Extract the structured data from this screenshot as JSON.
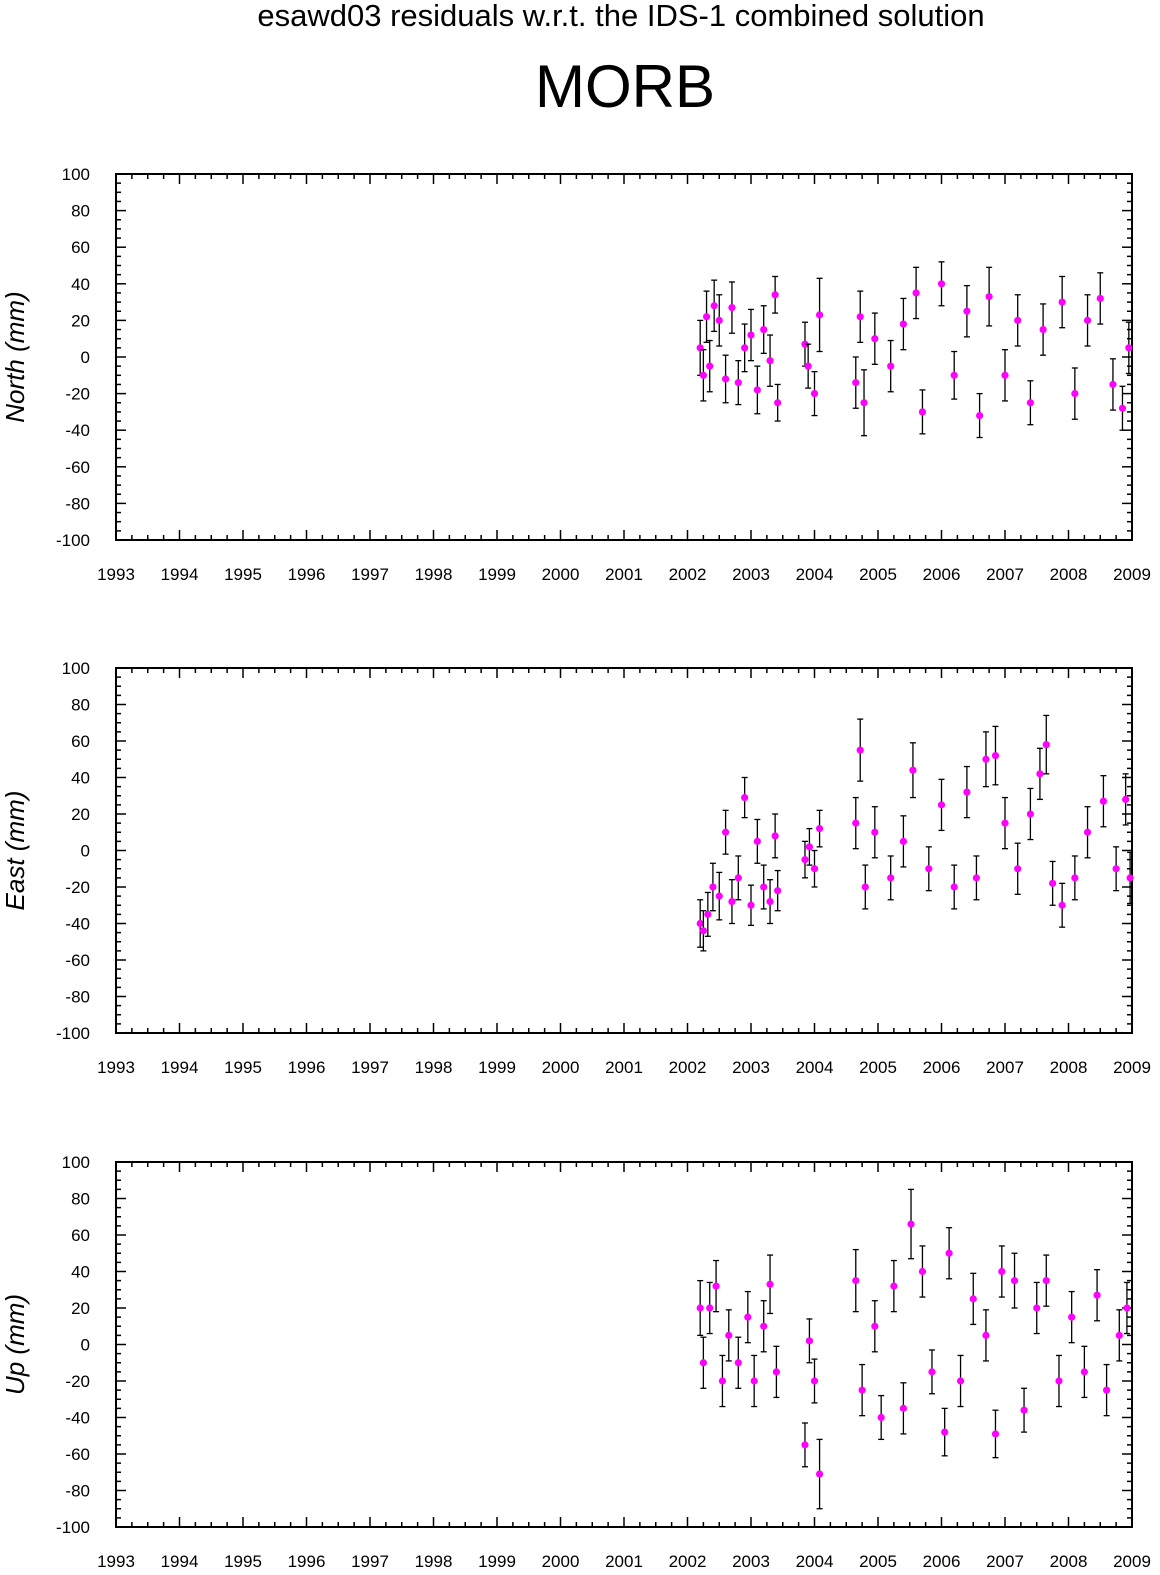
{
  "title": "esawd03 residuals w.r.t. the IDS-1 combined solution",
  "station": "MORB",
  "colors": {
    "points": "#ff00ff",
    "errorbars": "#000000",
    "axes": "#000000"
  },
  "chart_data": [
    {
      "type": "scatter",
      "ylabel": "North (mm)",
      "xlim": [
        1993,
        2009
      ],
      "ylim": [
        -100,
        100
      ],
      "x_ticks": [
        "1993",
        "1994",
        "1995",
        "1996",
        "1997",
        "1998",
        "1999",
        "2000",
        "2001",
        "2002",
        "2003",
        "2004",
        "2005",
        "2006",
        "2007",
        "2008",
        "2009"
      ],
      "y_ticks": [
        "100",
        "80",
        "60",
        "40",
        "20",
        "0",
        "-20",
        "-40",
        "-60",
        "-80",
        "-100"
      ],
      "series": [
        {
          "marker": "circle",
          "points": [
            {
              "x": 2002.2,
              "y": 5,
              "err": 15
            },
            {
              "x": 2002.25,
              "y": -10,
              "err": 14
            },
            {
              "x": 2002.3,
              "y": 22,
              "err": 14
            },
            {
              "x": 2002.35,
              "y": -5,
              "err": 14
            },
            {
              "x": 2002.42,
              "y": 28,
              "err": 14
            },
            {
              "x": 2002.5,
              "y": 20,
              "err": 14
            },
            {
              "x": 2002.6,
              "y": -12,
              "err": 13
            },
            {
              "x": 2002.7,
              "y": 27,
              "err": 14
            },
            {
              "x": 2002.8,
              "y": -14,
              "err": 12
            },
            {
              "x": 2002.9,
              "y": 5,
              "err": 13
            },
            {
              "x": 2003.0,
              "y": 12,
              "err": 14
            },
            {
              "x": 2003.1,
              "y": -18,
              "err": 13
            },
            {
              "x": 2003.2,
              "y": 15,
              "err": 13
            },
            {
              "x": 2003.3,
              "y": -2,
              "err": 14
            },
            {
              "x": 2003.38,
              "y": 34,
              "err": 10
            },
            {
              "x": 2003.42,
              "y": -25,
              "err": 10
            },
            {
              "x": 2003.85,
              "y": 7,
              "err": 12
            },
            {
              "x": 2003.9,
              "y": -5,
              "err": 12
            },
            {
              "x": 2004.0,
              "y": -20,
              "err": 12
            },
            {
              "x": 2004.08,
              "y": 23,
              "err": 20
            },
            {
              "x": 2004.65,
              "y": -14,
              "err": 14
            },
            {
              "x": 2004.72,
              "y": 22,
              "err": 14
            },
            {
              "x": 2004.78,
              "y": -25,
              "err": 18
            },
            {
              "x": 2004.95,
              "y": 10,
              "err": 14
            },
            {
              "x": 2005.2,
              "y": -5,
              "err": 14
            },
            {
              "x": 2005.4,
              "y": 18,
              "err": 14
            },
            {
              "x": 2005.6,
              "y": 35,
              "err": 14
            },
            {
              "x": 2005.7,
              "y": -30,
              "err": 12
            },
            {
              "x": 2006.0,
              "y": 40,
              "err": 12
            },
            {
              "x": 2006.2,
              "y": -10,
              "err": 13
            },
            {
              "x": 2006.4,
              "y": 25,
              "err": 14
            },
            {
              "x": 2006.6,
              "y": -32,
              "err": 12
            },
            {
              "x": 2006.75,
              "y": 33,
              "err": 16
            },
            {
              "x": 2007.0,
              "y": -10,
              "err": 14
            },
            {
              "x": 2007.2,
              "y": 20,
              "err": 14
            },
            {
              "x": 2007.4,
              "y": -25,
              "err": 12
            },
            {
              "x": 2007.6,
              "y": 15,
              "err": 14
            },
            {
              "x": 2007.9,
              "y": 30,
              "err": 14
            },
            {
              "x": 2008.1,
              "y": -20,
              "err": 14
            },
            {
              "x": 2008.3,
              "y": 20,
              "err": 14
            },
            {
              "x": 2008.5,
              "y": 32,
              "err": 14
            },
            {
              "x": 2008.7,
              "y": -15,
              "err": 14
            },
            {
              "x": 2008.85,
              "y": -28,
              "err": 12
            },
            {
              "x": 2008.95,
              "y": 5,
              "err": 14
            }
          ]
        }
      ]
    },
    {
      "type": "scatter",
      "ylabel": "East (mm)",
      "xlim": [
        1993,
        2009
      ],
      "ylim": [
        -100,
        100
      ],
      "x_ticks": [
        "1993",
        "1994",
        "1995",
        "1996",
        "1997",
        "1998",
        "1999",
        "2000",
        "2001",
        "2002",
        "2003",
        "2004",
        "2005",
        "2006",
        "2007",
        "2008",
        "2009"
      ],
      "y_ticks": [
        "100",
        "80",
        "60",
        "40",
        "20",
        "0",
        "-20",
        "-40",
        "-60",
        "-80",
        "-100"
      ],
      "series": [
        {
          "marker": "circle",
          "points": [
            {
              "x": 2002.2,
              "y": -40,
              "err": 13
            },
            {
              "x": 2002.25,
              "y": -44,
              "err": 11
            },
            {
              "x": 2002.32,
              "y": -35,
              "err": 12
            },
            {
              "x": 2002.4,
              "y": -20,
              "err": 13
            },
            {
              "x": 2002.5,
              "y": -25,
              "err": 13
            },
            {
              "x": 2002.6,
              "y": 10,
              "err": 12
            },
            {
              "x": 2002.7,
              "y": -28,
              "err": 12
            },
            {
              "x": 2002.8,
              "y": -15,
              "err": 12
            },
            {
              "x": 2002.9,
              "y": 29,
              "err": 11
            },
            {
              "x": 2003.0,
              "y": -30,
              "err": 11
            },
            {
              "x": 2003.1,
              "y": 5,
              "err": 12
            },
            {
              "x": 2003.2,
              "y": -20,
              "err": 12
            },
            {
              "x": 2003.3,
              "y": -28,
              "err": 12
            },
            {
              "x": 2003.38,
              "y": 8,
              "err": 12
            },
            {
              "x": 2003.42,
              "y": -22,
              "err": 11
            },
            {
              "x": 2003.85,
              "y": -5,
              "err": 10
            },
            {
              "x": 2003.92,
              "y": 2,
              "err": 10
            },
            {
              "x": 2004.0,
              "y": -10,
              "err": 10
            },
            {
              "x": 2004.08,
              "y": 12,
              "err": 10
            },
            {
              "x": 2004.65,
              "y": 15,
              "err": 14
            },
            {
              "x": 2004.72,
              "y": 55,
              "err": 17
            },
            {
              "x": 2004.8,
              "y": -20,
              "err": 12
            },
            {
              "x": 2004.95,
              "y": 10,
              "err": 14
            },
            {
              "x": 2005.2,
              "y": -15,
              "err": 12
            },
            {
              "x": 2005.4,
              "y": 5,
              "err": 14
            },
            {
              "x": 2005.55,
              "y": 44,
              "err": 15
            },
            {
              "x": 2005.8,
              "y": -10,
              "err": 12
            },
            {
              "x": 2006.0,
              "y": 25,
              "err": 14
            },
            {
              "x": 2006.2,
              "y": -20,
              "err": 12
            },
            {
              "x": 2006.4,
              "y": 32,
              "err": 14
            },
            {
              "x": 2006.55,
              "y": -15,
              "err": 12
            },
            {
              "x": 2006.7,
              "y": 50,
              "err": 15
            },
            {
              "x": 2006.85,
              "y": 52,
              "err": 16
            },
            {
              "x": 2007.0,
              "y": 15,
              "err": 14
            },
            {
              "x": 2007.2,
              "y": -10,
              "err": 14
            },
            {
              "x": 2007.4,
              "y": 20,
              "err": 14
            },
            {
              "x": 2007.55,
              "y": 42,
              "err": 14
            },
            {
              "x": 2007.65,
              "y": 58,
              "err": 16
            },
            {
              "x": 2007.75,
              "y": -18,
              "err": 12
            },
            {
              "x": 2007.9,
              "y": -30,
              "err": 12
            },
            {
              "x": 2008.1,
              "y": -15,
              "err": 12
            },
            {
              "x": 2008.3,
              "y": 10,
              "err": 14
            },
            {
              "x": 2008.55,
              "y": 27,
              "err": 14
            },
            {
              "x": 2008.75,
              "y": -10,
              "err": 12
            },
            {
              "x": 2008.9,
              "y": 28,
              "err": 14
            },
            {
              "x": 2008.97,
              "y": -15,
              "err": 14
            }
          ]
        }
      ]
    },
    {
      "type": "scatter",
      "ylabel": "Up (mm)",
      "xlim": [
        1993,
        2009
      ],
      "ylim": [
        -100,
        100
      ],
      "x_ticks": [
        "1993",
        "1994",
        "1995",
        "1996",
        "1997",
        "1998",
        "1999",
        "2000",
        "2001",
        "2002",
        "2003",
        "2004",
        "2005",
        "2006",
        "2007",
        "2008",
        "2009"
      ],
      "y_ticks": [
        "100",
        "80",
        "60",
        "40",
        "20",
        "0",
        "-20",
        "-40",
        "-60",
        "-80",
        "-100"
      ],
      "series": [
        {
          "marker": "circle",
          "points": [
            {
              "x": 2002.2,
              "y": 20,
              "err": 15
            },
            {
              "x": 2002.25,
              "y": -10,
              "err": 14
            },
            {
              "x": 2002.35,
              "y": 20,
              "err": 14
            },
            {
              "x": 2002.45,
              "y": 32,
              "err": 14
            },
            {
              "x": 2002.55,
              "y": -20,
              "err": 14
            },
            {
              "x": 2002.65,
              "y": 5,
              "err": 14
            },
            {
              "x": 2002.8,
              "y": -10,
              "err": 14
            },
            {
              "x": 2002.95,
              "y": 15,
              "err": 14
            },
            {
              "x": 2003.05,
              "y": -20,
              "err": 14
            },
            {
              "x": 2003.2,
              "y": 10,
              "err": 14
            },
            {
              "x": 2003.3,
              "y": 33,
              "err": 16
            },
            {
              "x": 2003.4,
              "y": -15,
              "err": 14
            },
            {
              "x": 2003.85,
              "y": -55,
              "err": 12
            },
            {
              "x": 2003.92,
              "y": 2,
              "err": 12
            },
            {
              "x": 2004.0,
              "y": -20,
              "err": 12
            },
            {
              "x": 2004.08,
              "y": -71,
              "err": 19
            },
            {
              "x": 2004.65,
              "y": 35,
              "err": 17
            },
            {
              "x": 2004.75,
              "y": -25,
              "err": 14
            },
            {
              "x": 2004.95,
              "y": 10,
              "err": 14
            },
            {
              "x": 2005.05,
              "y": -40,
              "err": 12
            },
            {
              "x": 2005.25,
              "y": 32,
              "err": 14
            },
            {
              "x": 2005.4,
              "y": -35,
              "err": 14
            },
            {
              "x": 2005.52,
              "y": 66,
              "err": 19
            },
            {
              "x": 2005.7,
              "y": 40,
              "err": 14
            },
            {
              "x": 2005.85,
              "y": -15,
              "err": 12
            },
            {
              "x": 2006.05,
              "y": -48,
              "err": 13
            },
            {
              "x": 2006.12,
              "y": 50,
              "err": 14
            },
            {
              "x": 2006.3,
              "y": -20,
              "err": 14
            },
            {
              "x": 2006.5,
              "y": 25,
              "err": 14
            },
            {
              "x": 2006.7,
              "y": 5,
              "err": 14
            },
            {
              "x": 2006.85,
              "y": -49,
              "err": 13
            },
            {
              "x": 2006.95,
              "y": 40,
              "err": 14
            },
            {
              "x": 2007.15,
              "y": 35,
              "err": 15
            },
            {
              "x": 2007.3,
              "y": -36,
              "err": 12
            },
            {
              "x": 2007.5,
              "y": 20,
              "err": 14
            },
            {
              "x": 2007.65,
              "y": 35,
              "err": 14
            },
            {
              "x": 2007.85,
              "y": -20,
              "err": 14
            },
            {
              "x": 2008.05,
              "y": 15,
              "err": 14
            },
            {
              "x": 2008.25,
              "y": -15,
              "err": 14
            },
            {
              "x": 2008.45,
              "y": 27,
              "err": 14
            },
            {
              "x": 2008.6,
              "y": -25,
              "err": 14
            },
            {
              "x": 2008.8,
              "y": 5,
              "err": 14
            },
            {
              "x": 2008.92,
              "y": 20,
              "err": 14
            }
          ]
        }
      ]
    }
  ]
}
